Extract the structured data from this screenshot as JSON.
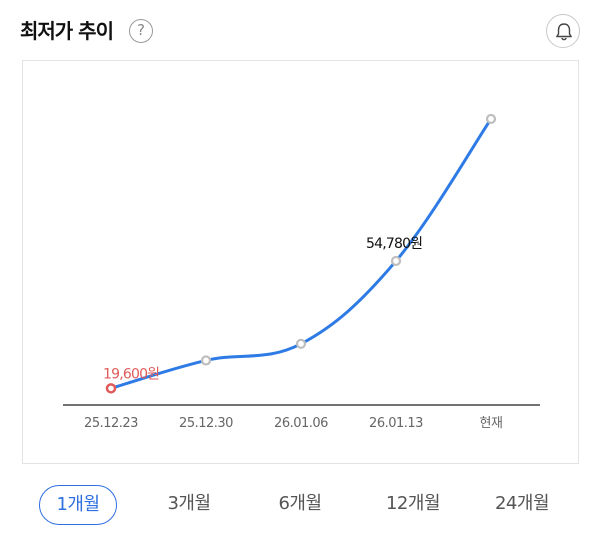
{
  "header": {
    "title": "최저가 추이",
    "help_symbol": "?",
    "alert_icon": "bell-icon"
  },
  "chart_data": {
    "type": "line",
    "categories": [
      "25.12.23",
      "25.12.30",
      "26.01.06",
      "26.01.13",
      "현재"
    ],
    "series": [
      {
        "values": [
          19600,
          27300,
          31900,
          54780,
          94000
        ]
      }
    ],
    "ylim": [
      15000,
      110000
    ],
    "annotations": [
      {
        "label": "19,600원",
        "point_index": 0,
        "kind": "lowest"
      },
      {
        "label": "54,780원",
        "point_index": 3,
        "kind": "value"
      }
    ],
    "colors": {
      "line": "#2e7be6",
      "lowest": "#e05a5a",
      "point": "#bdbdbd",
      "axis": "#444444"
    }
  },
  "periods": [
    {
      "label": "1개월",
      "active": true
    },
    {
      "label": "3개월",
      "active": false
    },
    {
      "label": "6개월",
      "active": false
    },
    {
      "label": "12개월",
      "active": false
    },
    {
      "label": "24개월",
      "active": false
    }
  ]
}
